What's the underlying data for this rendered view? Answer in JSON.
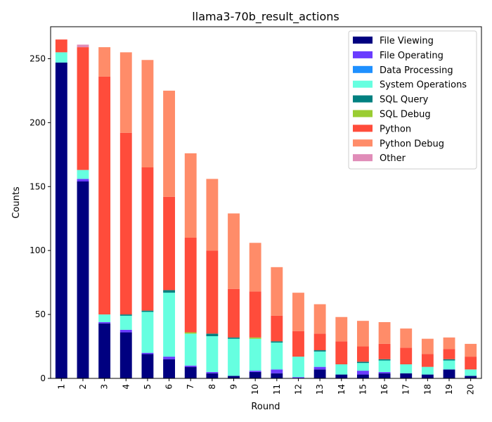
{
  "chart_data": {
    "type": "bar",
    "stacked": true,
    "title": "llama3-70b_result_actions",
    "xlabel": "Round",
    "ylabel": "Counts",
    "ylim": [
      0,
      275
    ],
    "yticks": [
      0,
      50,
      100,
      150,
      200,
      250
    ],
    "grid": false,
    "legend_position": "top-right",
    "categories": [
      "1",
      "2",
      "3",
      "4",
      "5",
      "6",
      "7",
      "8",
      "9",
      "10",
      "11",
      "12",
      "13",
      "14",
      "15",
      "16",
      "17",
      "18",
      "19",
      "20"
    ],
    "series": [
      {
        "name": "File Viewing",
        "color": "#000080",
        "values": [
          247,
          154,
          43,
          36,
          19,
          15,
          9,
          4,
          2,
          5,
          4,
          0,
          7,
          3,
          3,
          4,
          4,
          3,
          7,
          2
        ]
      },
      {
        "name": "File Operating",
        "color": "#6a3cff",
        "values": [
          0,
          2,
          1,
          2,
          1,
          2,
          1,
          1,
          0,
          1,
          3,
          1,
          2,
          0,
          3,
          1,
          0,
          0,
          0,
          0
        ]
      },
      {
        "name": "Data Processing",
        "color": "#1e90ff",
        "values": [
          0,
          0,
          0,
          0,
          0,
          0,
          0,
          0,
          0,
          0,
          0,
          0,
          0,
          0,
          0,
          0,
          0,
          0,
          0,
          0
        ]
      },
      {
        "name": "System Operations",
        "color": "#66ffe0",
        "values": [
          8,
          7,
          6,
          11,
          32,
          50,
          25,
          28,
          29,
          25,
          21,
          16,
          12,
          8,
          6,
          9,
          7,
          6,
          7,
          5
        ]
      },
      {
        "name": "SQL Query",
        "color": "#008080",
        "values": [
          0,
          0,
          0,
          1,
          1,
          2,
          0,
          2,
          1,
          0,
          1,
          0,
          1,
          0,
          1,
          1,
          0,
          0,
          1,
          0
        ]
      },
      {
        "name": "SQL Debug",
        "color": "#9acd32",
        "values": [
          0,
          0,
          0,
          0,
          0,
          0,
          1,
          0,
          0,
          1,
          0,
          0,
          0,
          0,
          0,
          0,
          0,
          0,
          0,
          0
        ]
      },
      {
        "name": "Python",
        "color": "#ff4c3b",
        "values": [
          10,
          96,
          186,
          142,
          112,
          73,
          74,
          65,
          38,
          36,
          20,
          20,
          13,
          18,
          12,
          12,
          13,
          10,
          8,
          10
        ]
      },
      {
        "name": "Python Debug",
        "color": "#ff8c69",
        "values": [
          0,
          0,
          23,
          63,
          84,
          83,
          66,
          56,
          59,
          38,
          38,
          30,
          23,
          19,
          20,
          17,
          15,
          12,
          9,
          10
        ]
      },
      {
        "name": "Other",
        "color": "#e08cb8",
        "values": [
          0,
          2,
          0,
          0,
          0,
          0,
          0,
          0,
          0,
          0,
          0,
          0,
          0,
          0,
          0,
          0,
          0,
          0,
          0,
          0
        ]
      }
    ]
  }
}
